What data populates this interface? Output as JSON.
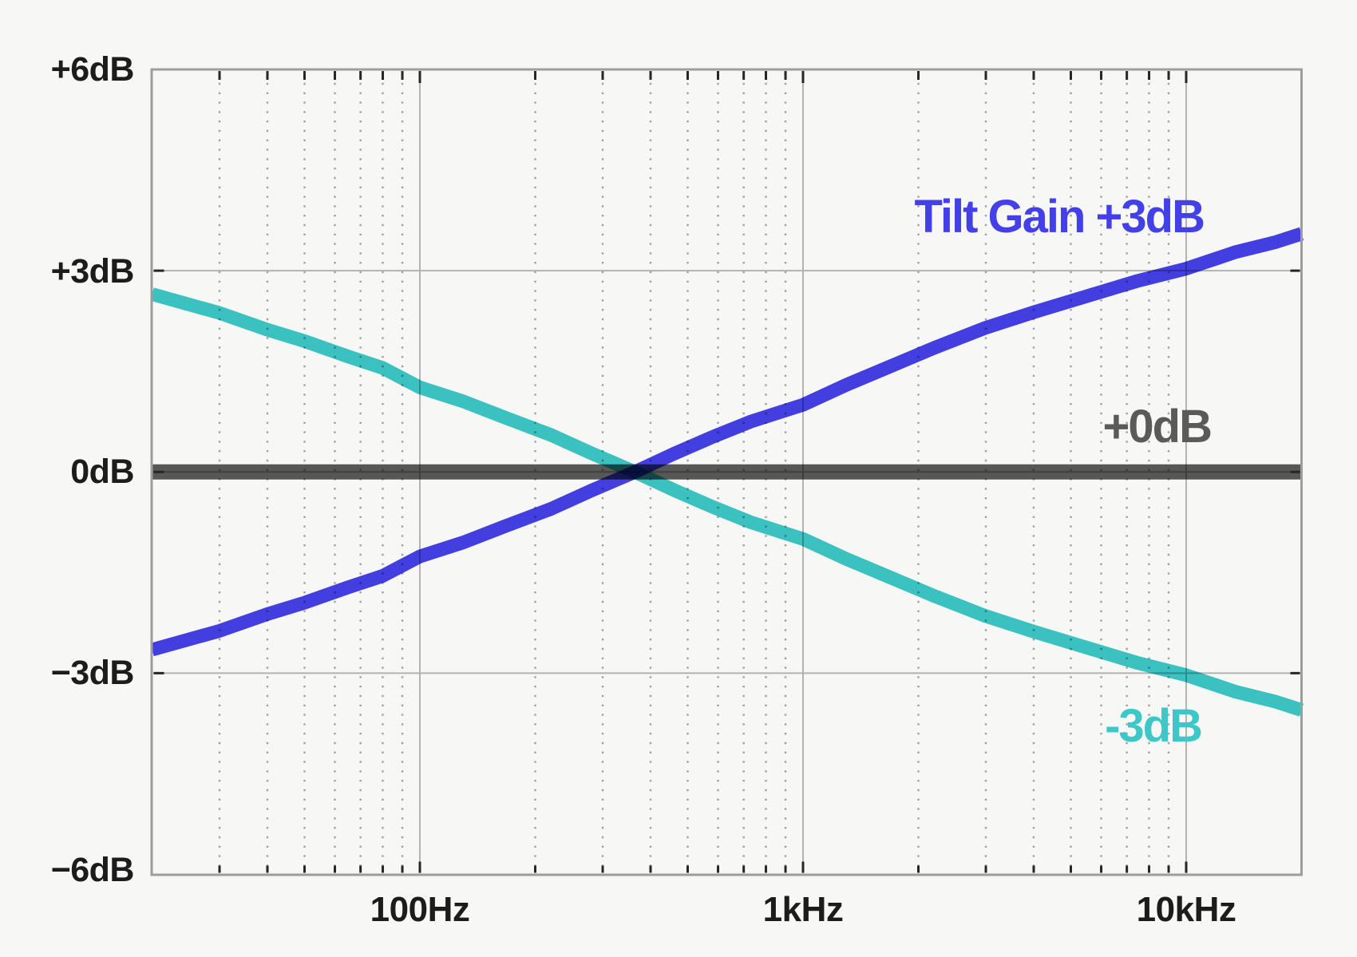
{
  "chart_data": {
    "type": "line",
    "title": "",
    "x_axis": {
      "scale": "log",
      "unit": "Hz",
      "min": 20,
      "max": 20000,
      "major_ticks": [
        {
          "value": 100,
          "label": "100Hz"
        },
        {
          "value": 1000,
          "label": "1kHz"
        },
        {
          "value": 10000,
          "label": "10kHz"
        }
      ],
      "minor_ticks": [
        30,
        40,
        50,
        60,
        70,
        80,
        90,
        200,
        300,
        400,
        500,
        600,
        700,
        800,
        900,
        2000,
        3000,
        4000,
        5000,
        6000,
        7000,
        8000,
        9000
      ]
    },
    "y_axis": {
      "unit": "dB",
      "min": -6,
      "max": 6,
      "major_ticks": [
        {
          "value": 6,
          "label": "+6dB"
        },
        {
          "value": 3,
          "label": "+3dB"
        },
        {
          "value": 0,
          "label": "0dB"
        },
        {
          "value": -3,
          "label": "−3dB"
        },
        {
          "value": -6,
          "label": "−6dB"
        }
      ],
      "gridline_values": [
        3,
        0,
        -3
      ]
    },
    "grid": {
      "major": true,
      "minor_vertical_dotted": true
    },
    "legend_position": "inline-annotations",
    "series": [
      {
        "name": "flat-0db",
        "label": "+0dB",
        "color": "#5a5a5a",
        "line_width": 19,
        "points": [
          [
            20,
            0
          ],
          [
            20000,
            0
          ]
        ]
      },
      {
        "name": "tilt-minus-3db",
        "label": "-3dB",
        "color": "#3cc8c8",
        "line_width": 17,
        "points": [
          [
            20,
            2.65
          ],
          [
            30,
            2.37
          ],
          [
            40,
            2.12
          ],
          [
            50,
            1.95
          ],
          [
            65,
            1.72
          ],
          [
            80,
            1.55
          ],
          [
            100,
            1.26
          ],
          [
            130,
            1.05
          ],
          [
            165,
            0.82
          ],
          [
            220,
            0.55
          ],
          [
            280,
            0.28
          ],
          [
            364,
            0
          ],
          [
            460,
            -0.27
          ],
          [
            580,
            -0.52
          ],
          [
            730,
            -0.75
          ],
          [
            1000,
            -1.0
          ],
          [
            1300,
            -1.3
          ],
          [
            1700,
            -1.58
          ],
          [
            2200,
            -1.85
          ],
          [
            3000,
            -2.15
          ],
          [
            4000,
            -2.38
          ],
          [
            5500,
            -2.62
          ],
          [
            7500,
            -2.85
          ],
          [
            10000,
            -3.03
          ],
          [
            13500,
            -3.28
          ],
          [
            17000,
            -3.42
          ],
          [
            20000,
            -3.55
          ]
        ]
      },
      {
        "name": "tilt-plus-3db",
        "label": "Tilt Gain +3dB",
        "color": "#4440e8",
        "line_width": 17,
        "points": [
          [
            20,
            -2.65
          ],
          [
            30,
            -2.37
          ],
          [
            40,
            -2.12
          ],
          [
            50,
            -1.95
          ],
          [
            65,
            -1.72
          ],
          [
            80,
            -1.55
          ],
          [
            100,
            -1.26
          ],
          [
            130,
            -1.05
          ],
          [
            165,
            -0.82
          ],
          [
            220,
            -0.55
          ],
          [
            280,
            -0.28
          ],
          [
            364,
            0
          ],
          [
            460,
            0.27
          ],
          [
            580,
            0.52
          ],
          [
            730,
            0.75
          ],
          [
            1000,
            1.0
          ],
          [
            1300,
            1.3
          ],
          [
            1700,
            1.58
          ],
          [
            2200,
            1.85
          ],
          [
            3000,
            2.15
          ],
          [
            4000,
            2.38
          ],
          [
            5500,
            2.62
          ],
          [
            7500,
            2.85
          ],
          [
            10000,
            3.03
          ],
          [
            13500,
            3.28
          ],
          [
            17000,
            3.42
          ],
          [
            20000,
            3.55
          ]
        ]
      }
    ]
  }
}
